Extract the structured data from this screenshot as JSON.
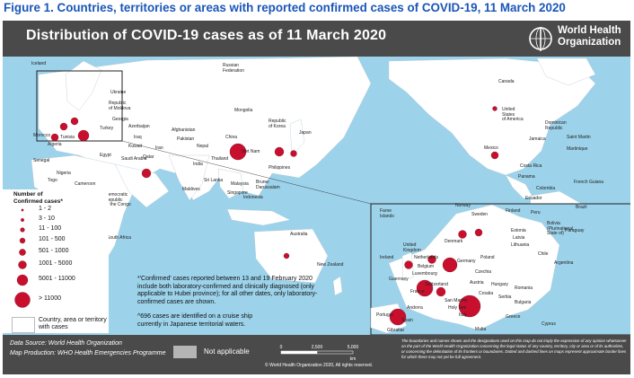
{
  "figure_title": "Figure 1. Countries, territories or areas with reported confirmed cases of COVID-19, 11 March 2020",
  "map_title": "Distribution of COVID-19 cases as of 11 March 2020",
  "who_logo_text": "World Health\nOrganization",
  "colors": {
    "title_blue": "#1a56b8",
    "banner": "#4a4a4a",
    "ocean": "#9cd2ea",
    "land": "#ffffff",
    "not_applicable": "#b5b5b5",
    "marker": "#c8102e"
  },
  "legend": {
    "title": "Number of\nConfirmed cases*",
    "classes": [
      "1 - 2",
      "3 - 10",
      "11 - 100",
      "101 - 500",
      "501 - 1000",
      "1001 - 5000",
      "5001 - 11000",
      "> 11000"
    ],
    "country_label": "Country, area or territory\nwith cases"
  },
  "footnotes": {
    "confirmed": "*'Confirmed' cases reported between 13 and 19 February 2020\ninclude both laboratory-confirmed and clinically diagnosed (only\napplicable to Hubei province); for all other dates, only laboratory-\nconfirmed cases are shown.",
    "cruise": "^696 cases are identified on a cruise ship\ncurrently in Japanese territorial waters."
  },
  "footer": {
    "data_source": "Data Source: World Health Organization",
    "map_production": "Map Production: WHO Health Emergencies Programme",
    "not_applicable": "Not applicable",
    "scale_labels": [
      "0",
      "2,500",
      "5,000"
    ],
    "scale_unit": "km",
    "copyright": "© World Health Organization 2020, All rights reserved.",
    "disclaimer": "The boundaries and names shown and the designations used on this map do not imply the expression of any opinion whatsoever on the part of the World Health Organization concerning the legal status of any country, territory, city or area or of its authorities, or concerning the delimitation of its frontiers or boundaries. Dotted and dashed lines on maps represent approximate border lines for which there may not yet be full agreement."
  },
  "countries": {
    "iceland": "Iceland",
    "russia": "Russian\nFederation",
    "canada": "Canada",
    "usa": "United\nStates\nof America",
    "mongolia": "Mongolia",
    "china": "China",
    "korea": "Republic\nof Korea",
    "japan": "Japan",
    "nepal": "Nepal",
    "india": "India",
    "sri_lanka": "Sri Lanka",
    "maldives": "Maldives",
    "thailand": "Thailand",
    "viet_nam": "Viet Nam",
    "philippines": "Philippines",
    "malaysia": "Malaysia",
    "brunei": "Brunei\nDarussalam",
    "indonesia": "Indonesia",
    "singapore": "Singapore",
    "australia": "Australia",
    "new_zealand": "New Zealand",
    "mexico": "Mexico",
    "dominican": "Dominican\nRepublic",
    "jamaica": "Jamaica",
    "saint_martin": "Saint Martin",
    "martinique": "Martinique",
    "costa_rica": "Costa Rica",
    "panama": "Panama",
    "colombia": "Colombia",
    "ecuador": "Ecuador",
    "peru": "Peru",
    "brazil": "Brazil",
    "bolivia": "Bolivia\n(Plurinational\nState of)",
    "paraguay": "Paraguay",
    "chile": "Chile",
    "argentina": "Argentina",
    "french_guiana": "French Guiana",
    "south_africa": "South Africa",
    "nigeria": "Nigeria",
    "egypt": "Egypt",
    "senegal": "Senegal",
    "morocco": "Morocco",
    "algeria": "Algeria",
    "tunisia": "Tunisia",
    "togo": "Togo",
    "cameroon": "Cameroon",
    "drc": "Democratic\nRepublic\nof the Congo",
    "pakistan": "Pakistan",
    "afghanistan": "Afghanistan",
    "iran": "Iran",
    "iraq": "Iraq",
    "kuwait": "Kuwait",
    "qatar": "Qatar",
    "saudi_arabia": "Saudi Arabia",
    "georgia": "Georgia",
    "azerbaijan": "Azerbaijan",
    "moldova": "Republic\nof Moldova",
    "ukraine": "Ukraine",
    "turkey": "Turkey",
    "faroe": "Faroe\nIslands",
    "norway": "Norway",
    "sweden": "Sweden",
    "finland": "Finland",
    "estonia": "Estonia",
    "latvia": "Latvia",
    "lithuania": "Lithuania",
    "denmark": "Denmark",
    "uk": "United\nKingdom",
    "ireland": "Ireland",
    "netherlands": "Netherlands",
    "belgium": "Belgium",
    "germany": "Germany",
    "poland": "Poland",
    "czechia": "Czechia",
    "france": "France",
    "switzerland": "Switzerland",
    "austria": "Austria",
    "italy": "Italy",
    "spain": "Spain",
    "portugal": "Portugal",
    "andorra": "Andorra",
    "greece": "Greece",
    "guernsey": "Guernsey",
    "gibraltar": "Gibraltar",
    "san_marino": "San Marino",
    "holy_see": "Holy See",
    "hungary": "Hungary",
    "croatia": "Croatia",
    "serbia": "Serbia",
    "bulgaria": "Bulgaria",
    "cyprus": "Cyprus",
    "romania": "Romania",
    "luxembourg": "Luxembourg",
    "malta": "Malta"
  }
}
